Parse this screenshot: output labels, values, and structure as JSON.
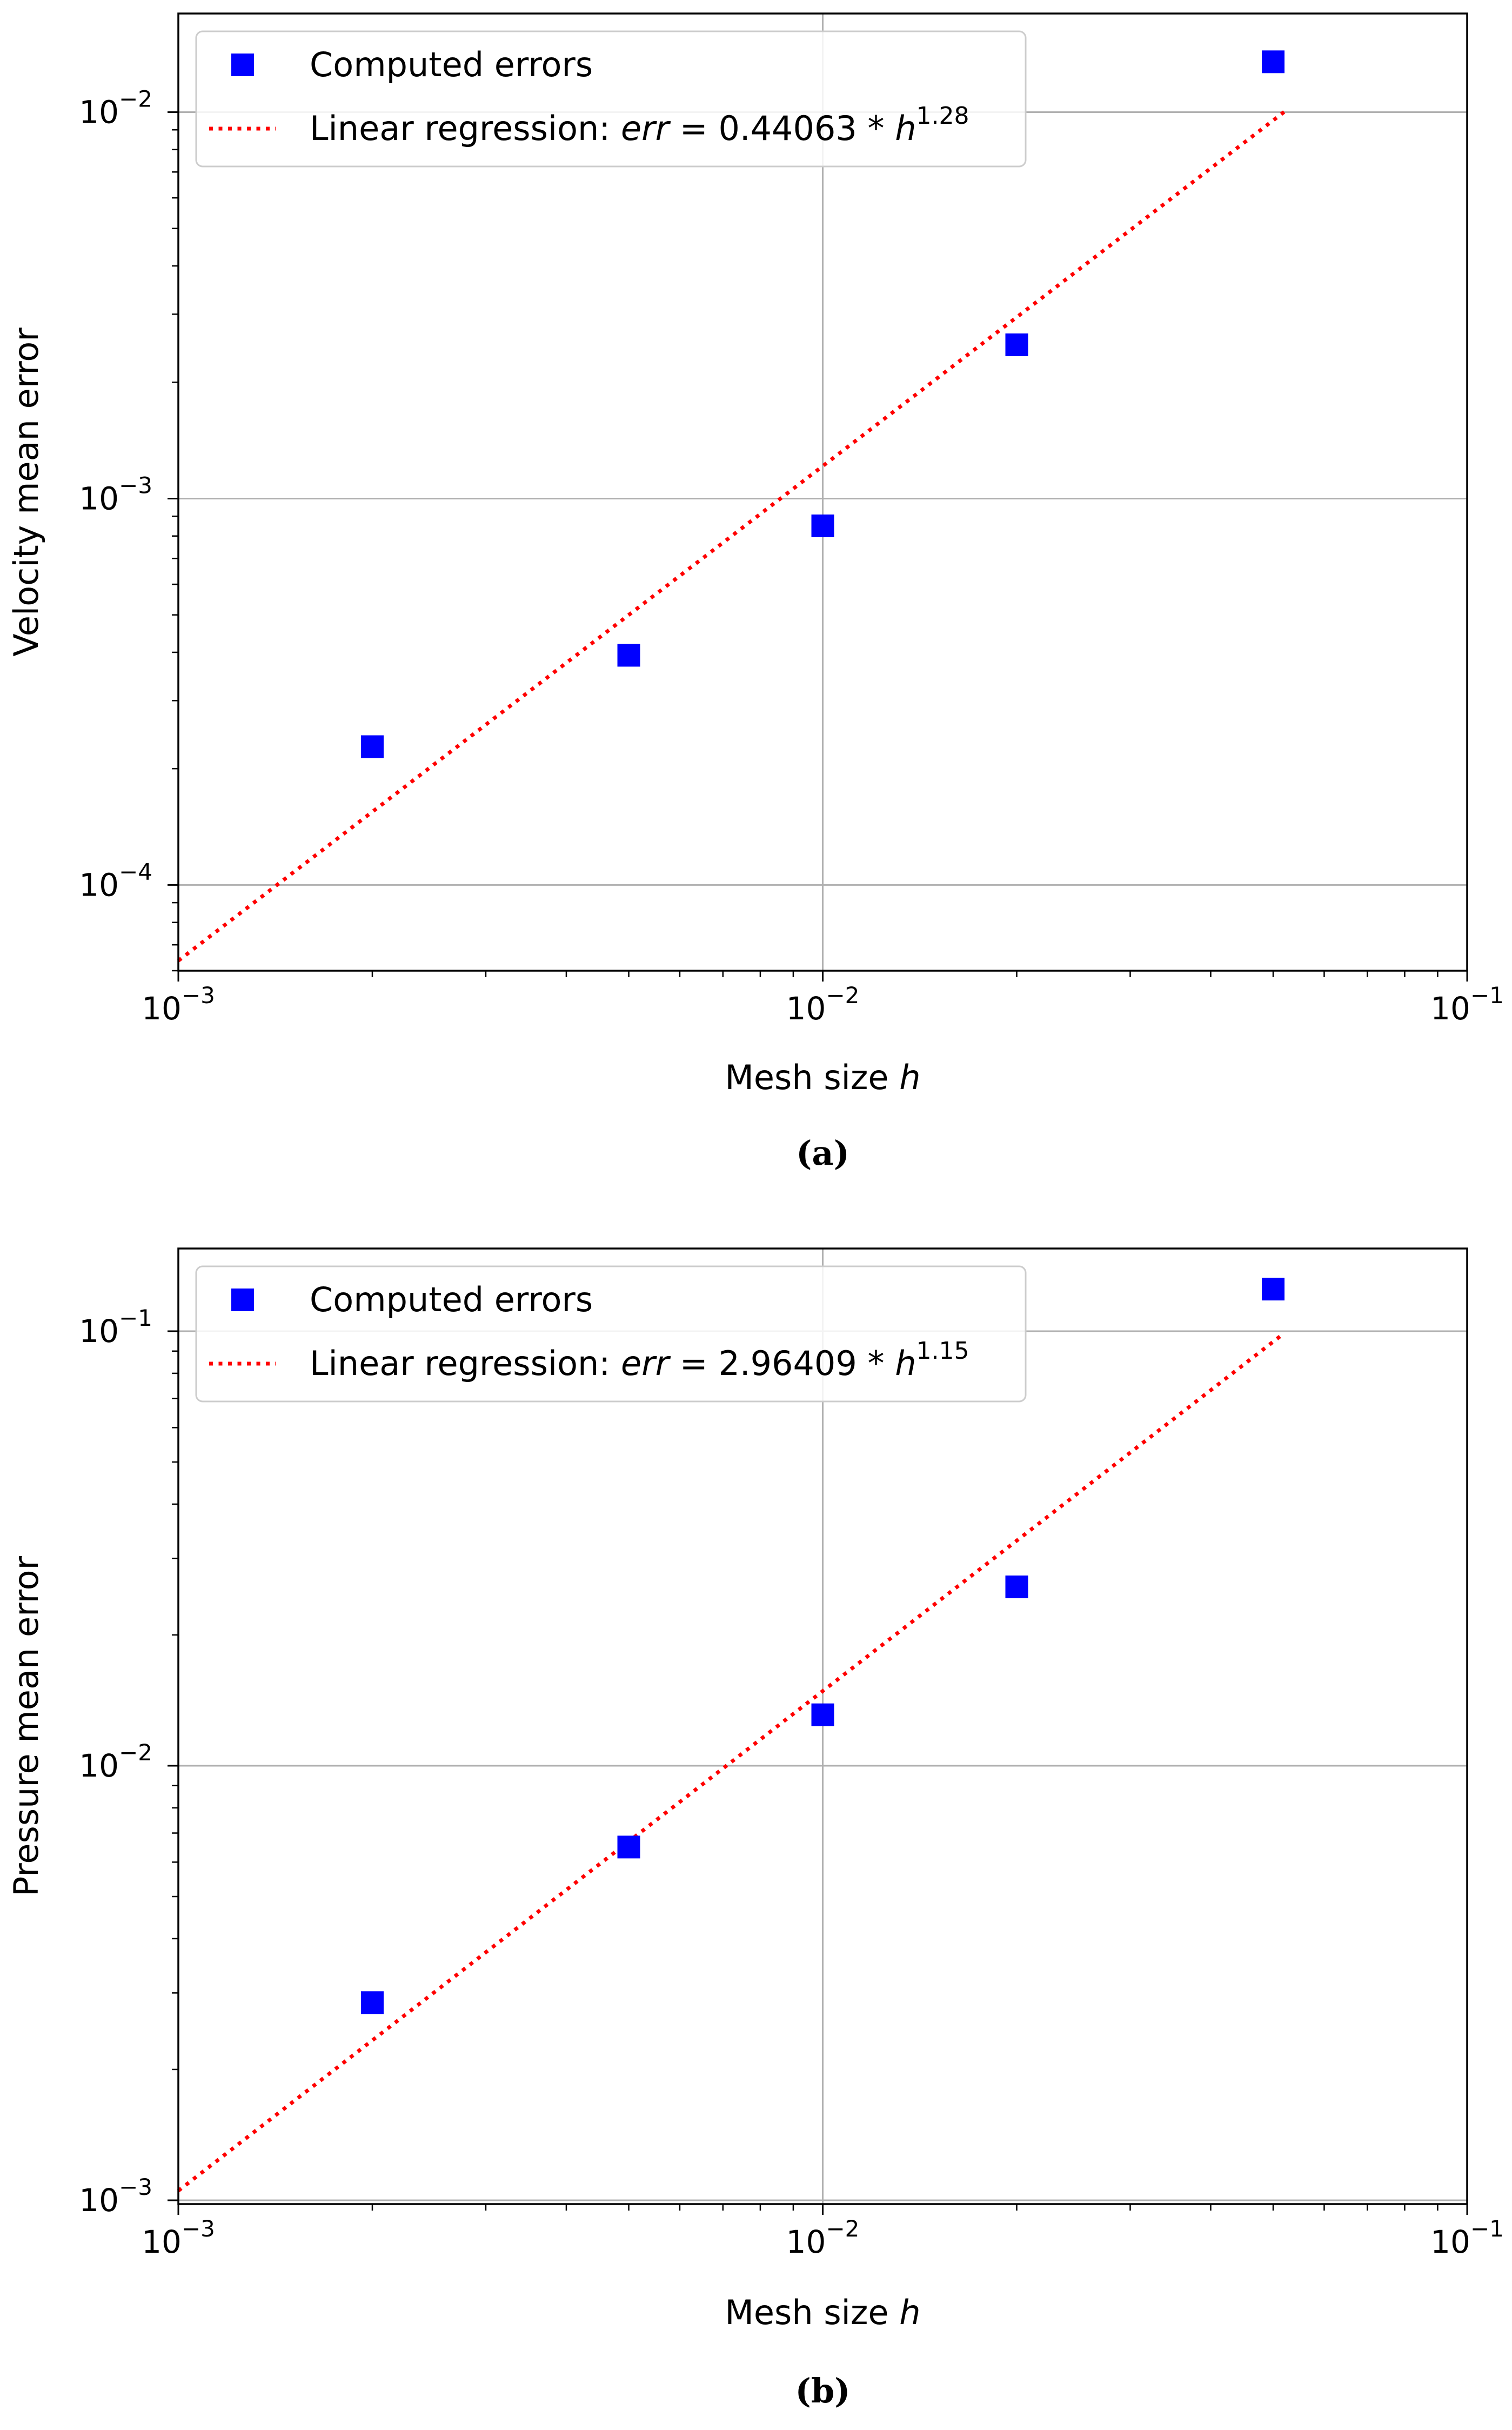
{
  "chart_data": [
    {
      "type": "scatter",
      "panel_label": "(a)",
      "xscale": "log",
      "yscale": "log",
      "xlabel": "Mesh size h",
      "ylabel": "Velocity mean error",
      "xlim": [
        0.001,
        0.1
      ],
      "ylim": [
        6e-05,
        0.018
      ],
      "grid": true,
      "legend_position": "top-left",
      "xticks": [
        0.001,
        0.01,
        0.1
      ],
      "xtick_labels": [
        {
          "base": "10",
          "exp": "−3"
        },
        {
          "base": "10",
          "exp": "−2"
        },
        {
          "base": "10",
          "exp": "−1"
        }
      ],
      "yticks": [
        0.0001,
        0.001,
        0.01
      ],
      "ytick_labels": [
        {
          "base": "10",
          "exp": "−4"
        },
        {
          "base": "10",
          "exp": "−3"
        },
        {
          "base": "10",
          "exp": "−2"
        }
      ],
      "series": [
        {
          "name": "Computed errors",
          "kind": "markers",
          "color": "#0000ff",
          "x": [
            0.002,
            0.005,
            0.01,
            0.02,
            0.05
          ],
          "y": [
            0.000228,
            0.000393,
            0.00085,
            0.0025,
            0.0135
          ]
        },
        {
          "name": "Linear regression",
          "kind": "dotted-line",
          "color": "#ff0000",
          "coefficient": 0.44063,
          "exponent": 1.28,
          "x_range": [
            0.001,
            0.052
          ],
          "legend_prefix": "Linear regression: ",
          "legend_err": "err",
          "legend_eq": " = 0.44063 * ",
          "legend_h": "h",
          "legend_exp": "1.28"
        }
      ]
    },
    {
      "type": "scatter",
      "panel_label": "(b)",
      "xscale": "log",
      "yscale": "log",
      "xlabel": "Mesh size h",
      "ylabel": "Pressure mean error",
      "xlim": [
        0.001,
        0.1
      ],
      "ylim": [
        0.00098,
        0.155
      ],
      "grid": true,
      "legend_position": "top-left",
      "xticks": [
        0.001,
        0.01,
        0.1
      ],
      "xtick_labels": [
        {
          "base": "10",
          "exp": "−3"
        },
        {
          "base": "10",
          "exp": "−2"
        },
        {
          "base": "10",
          "exp": "−1"
        }
      ],
      "yticks": [
        0.001,
        0.01,
        0.1
      ],
      "ytick_labels": [
        {
          "base": "10",
          "exp": "−3"
        },
        {
          "base": "10",
          "exp": "−2"
        },
        {
          "base": "10",
          "exp": "−1"
        }
      ],
      "series": [
        {
          "name": "Computed errors",
          "kind": "markers",
          "color": "#0000ff",
          "x": [
            0.002,
            0.005,
            0.01,
            0.02,
            0.05
          ],
          "y": [
            0.00285,
            0.0065,
            0.0131,
            0.0258,
            0.125
          ]
        },
        {
          "name": "Linear regression",
          "kind": "dotted-line",
          "color": "#ff0000",
          "coefficient": 2.96409,
          "exponent": 1.15,
          "x_range": [
            0.001,
            0.052
          ],
          "legend_prefix": "Linear regression: ",
          "legend_err": "err",
          "legend_eq": " = 2.96409 * ",
          "legend_h": "h",
          "legend_exp": "1.15"
        }
      ]
    }
  ]
}
